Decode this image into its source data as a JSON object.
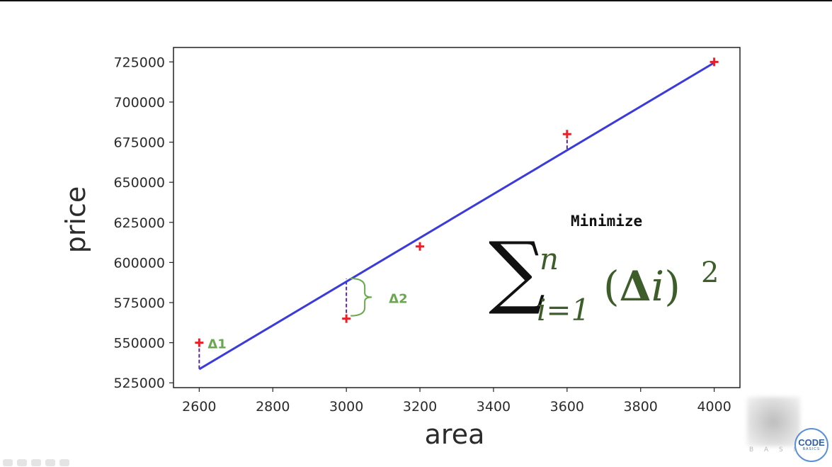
{
  "chart_data": {
    "type": "scatter",
    "xlabel": "area",
    "ylabel": "price",
    "xlim": [
      2530,
      4070
    ],
    "ylim": [
      522000,
      734000
    ],
    "xticks": [
      2600,
      2800,
      3000,
      3200,
      3400,
      3600,
      3800,
      4000
    ],
    "yticks": [
      525000,
      550000,
      575000,
      600000,
      625000,
      650000,
      675000,
      700000,
      725000
    ],
    "grid": false,
    "points": [
      {
        "x": 2600,
        "y": 550000
      },
      {
        "x": 3000,
        "y": 565000
      },
      {
        "x": 3200,
        "y": 610000
      },
      {
        "x": 3600,
        "y": 680000
      },
      {
        "x": 4000,
        "y": 725000
      }
    ],
    "regression_line": {
      "x": [
        2600,
        4000
      ],
      "y": [
        533500,
        724500
      ]
    },
    "residuals": [
      {
        "x": 2600,
        "y_from": 550000,
        "y_to": 533500
      },
      {
        "x": 3000,
        "y_from": 565000,
        "y_to": 590000
      },
      {
        "x": 3600,
        "y_from": 680000,
        "y_to": 670000
      }
    ],
    "annotations": [
      {
        "text": "Δ1",
        "x": 2600,
        "y": 550000
      },
      {
        "text": "Δ2",
        "x": 3000,
        "y": 577500
      }
    ],
    "colors": {
      "points": "#e8202a",
      "line": "#3b3bdc",
      "residual": "#5a2a8a",
      "annotation": "#6aa84f"
    }
  },
  "overlay": {
    "minimize_label": "Minimize",
    "formula": {
      "sigma": "∑",
      "upper": "n",
      "lower": "i=1",
      "body_open": "(",
      "body_delta": "Δ",
      "body_var": "i",
      "body_close": ")",
      "exponent": "2"
    }
  },
  "watermark": {
    "channel_text": "B A S I C",
    "logo_main": "CODE",
    "logo_sub": "BASICS"
  }
}
